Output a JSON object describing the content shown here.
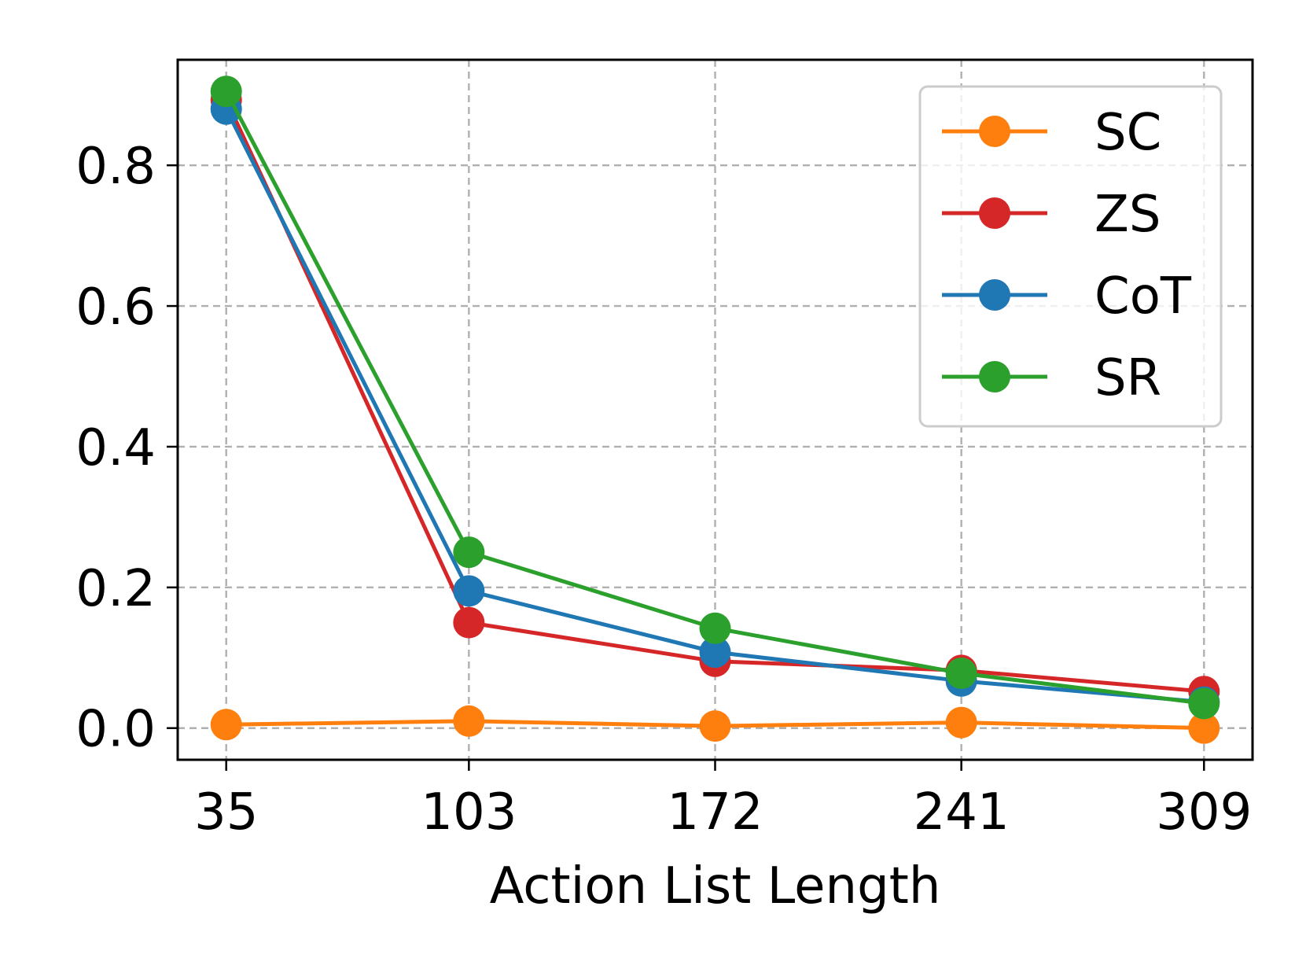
{
  "chart_data": {
    "type": "line",
    "title": "",
    "xlabel": "Action List Length",
    "ylabel": "",
    "x": [
      35,
      103,
      172,
      241,
      309
    ],
    "x_tick_labels": [
      "35",
      "103",
      "172",
      "241",
      "309"
    ],
    "y_ticks": [
      0.0,
      0.2,
      0.4,
      0.6,
      0.8
    ],
    "y_tick_labels": [
      "0.0",
      "0.2",
      "0.4",
      "0.6",
      "0.8"
    ],
    "xlim": [
      21.4,
      322.6
    ],
    "ylim": [
      -0.045,
      0.95
    ],
    "grid": true,
    "legend_position": "top-right",
    "series": [
      {
        "name": "SC",
        "color": "#ff7f0e",
        "values": [
          0.005,
          0.01,
          0.003,
          0.008,
          0.0
        ]
      },
      {
        "name": "ZS",
        "color": "#d62728",
        "values": [
          0.893,
          0.15,
          0.095,
          0.082,
          0.052
        ]
      },
      {
        "name": "CoT",
        "color": "#1f77b4",
        "values": [
          0.88,
          0.195,
          0.108,
          0.067,
          0.037
        ]
      },
      {
        "name": "SR",
        "color": "#2ca02c",
        "values": [
          0.905,
          0.25,
          0.142,
          0.078,
          0.035
        ]
      }
    ]
  }
}
